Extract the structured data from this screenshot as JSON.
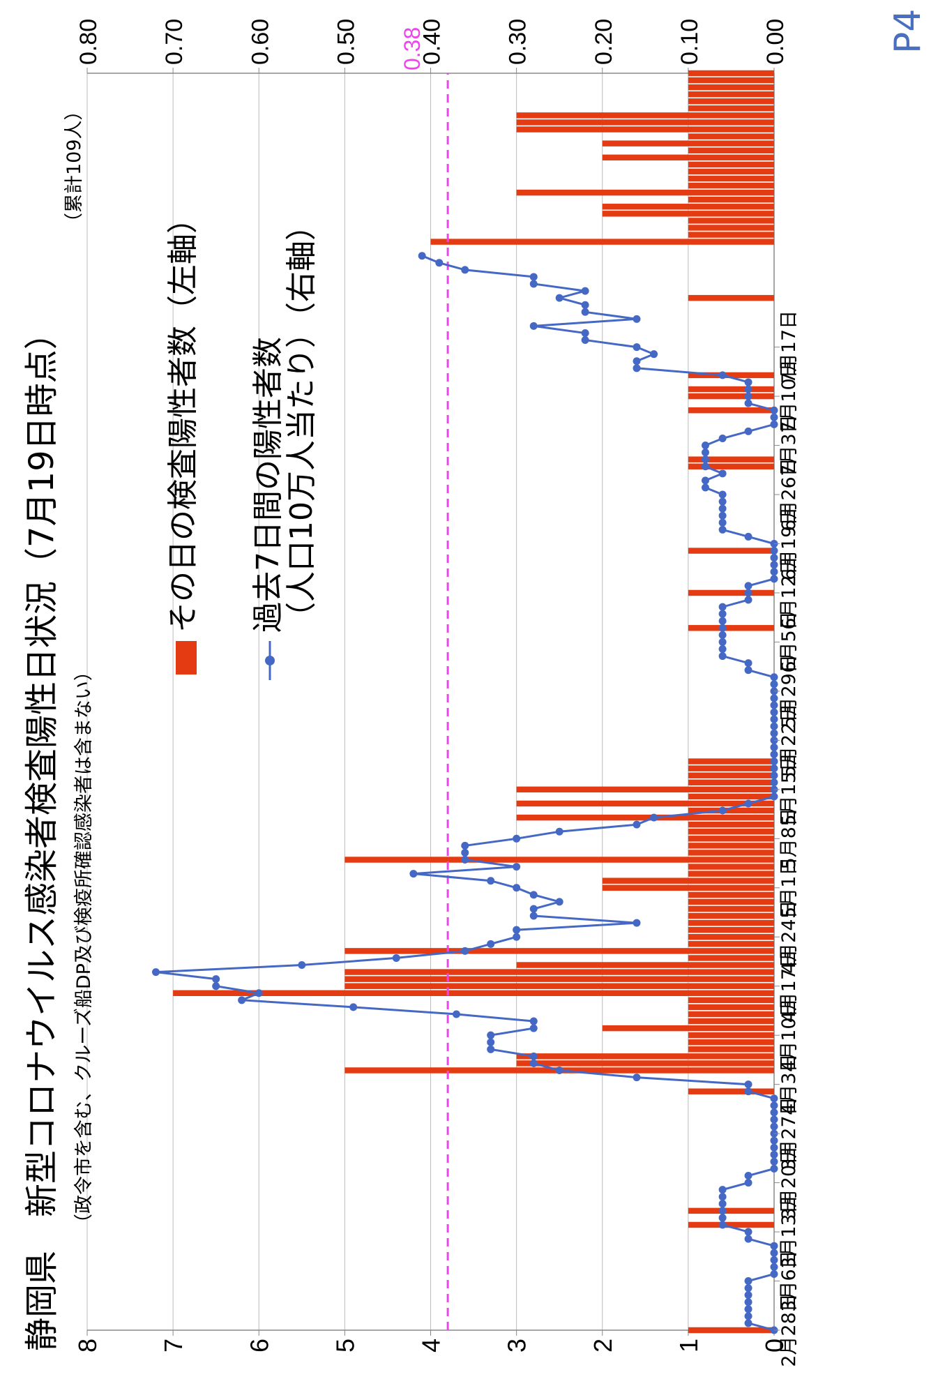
{
  "page_number": "P4",
  "title": "静岡県　新型コロナウイルス感染者検査陽性日状況（7月19日時点）",
  "subtitle": "（政令市を含む、クルーズ船DP及び検疫所確認感染者は含まない）",
  "cumulative_note": "（累計109人）",
  "legend": {
    "bar_label": "その日の検査陽性者数（左軸）",
    "line_label_1": "過去7日間の陽性者数",
    "line_label_2": "（人口10万人当たり）（右軸）"
  },
  "colors": {
    "bar": "#e53b12",
    "line": "#4468c4",
    "reference": "#ee44ee",
    "grid": "#bbbbbb"
  },
  "chart_data": {
    "type": "bar",
    "x_start": "2月28日",
    "x_end": "7月19日",
    "x_ticks": [
      "2月28日",
      "3月6日",
      "3月13日",
      "3月20日",
      "3月27日",
      "4月3日",
      "4月10日",
      "4月17日",
      "4月24日",
      "5月1日",
      "5月8日",
      "5月15日",
      "5月22日",
      "5月29日",
      "6月5日",
      "6月12日",
      "6月19日",
      "6月26日",
      "7月3日",
      "7月10日",
      "7月17日"
    ],
    "left_axis": {
      "ylim": [
        0,
        8
      ],
      "ticks": [
        "0",
        "1",
        "2",
        "3",
        "4",
        "5",
        "6",
        "7",
        "8"
      ]
    },
    "right_axis": {
      "ylim": [
        0,
        0.8
      ],
      "ticks": [
        "0.00",
        "0.10",
        "0.20",
        "0.30",
        "0.40",
        "0.50",
        "0.60",
        "0.70",
        "0.80"
      ]
    },
    "grid": true,
    "reference_line": {
      "value": 0.38,
      "label": "0.38"
    },
    "series": [
      {
        "kind": "bar",
        "axis": "left",
        "values": [
          1,
          0,
          0,
          0,
          0,
          0,
          0,
          0,
          0,
          0,
          0,
          0,
          0,
          0,
          0,
          1,
          0,
          1,
          0,
          0,
          0,
          0,
          0,
          0,
          0,
          0,
          0,
          0,
          0,
          0,
          0,
          0,
          0,
          0,
          1,
          0,
          0,
          5,
          3,
          3,
          1,
          1,
          1,
          2,
          1,
          1,
          1,
          1,
          7,
          5,
          5,
          5,
          3,
          1,
          5,
          1,
          1,
          1,
          1,
          1,
          1,
          1,
          1,
          2,
          2,
          1,
          1,
          5,
          1,
          1,
          1,
          1,
          1,
          3,
          1,
          3,
          1,
          3,
          1,
          1,
          1,
          1,
          0,
          0,
          0,
          0,
          0,
          0,
          0,
          0,
          0,
          0,
          0,
          0,
          0,
          0,
          0,
          0,
          0,
          0,
          1,
          0,
          0,
          0,
          0,
          1,
          0,
          0,
          0,
          0,
          0,
          1,
          0,
          0,
          0,
          0,
          0,
          0,
          0,
          0,
          0,
          0,
          0,
          1,
          1,
          0,
          0,
          0,
          0,
          0,
          0,
          1,
          0,
          1,
          1,
          0,
          1,
          0,
          0,
          0,
          0,
          0,
          0,
          0,
          0,
          0,
          0,
          1,
          0,
          0,
          0,
          0,
          0,
          0,
          0,
          4,
          1,
          1,
          1,
          2,
          2,
          1,
          3,
          1,
          1,
          1,
          1,
          2,
          1,
          2,
          1,
          3,
          3,
          3,
          1,
          1,
          1,
          1,
          1,
          1
        ]
      },
      {
        "kind": "line",
        "axis": "right",
        "values": [
          [
            0,
            0.0
          ],
          [
            1,
            0.03
          ],
          [
            2,
            0.03
          ],
          [
            3,
            0.03
          ],
          [
            4,
            0.03
          ],
          [
            5,
            0.03
          ],
          [
            6,
            0.03
          ],
          [
            7,
            0.03
          ],
          [
            8,
            0.0
          ],
          [
            9,
            0.0
          ],
          [
            10,
            0.0
          ],
          [
            11,
            0.0
          ],
          [
            12,
            0.0
          ],
          [
            13,
            0.03
          ],
          [
            14,
            0.03
          ],
          [
            15,
            0.06
          ],
          [
            16,
            0.06
          ],
          [
            17,
            0.06
          ],
          [
            18,
            0.06
          ],
          [
            19,
            0.06
          ],
          [
            20,
            0.06
          ],
          [
            21,
            0.03
          ],
          [
            22,
            0.03
          ],
          [
            23,
            0.0
          ],
          [
            24,
            0.0
          ],
          [
            25,
            0.0
          ],
          [
            26,
            0.0
          ],
          [
            27,
            0.0
          ],
          [
            28,
            0.0
          ],
          [
            29,
            0.0
          ],
          [
            30,
            0.0
          ],
          [
            31,
            0.0
          ],
          [
            32,
            0.0
          ],
          [
            33,
            0.0
          ],
          [
            34,
            0.03
          ],
          [
            35,
            0.03
          ],
          [
            36,
            0.16
          ],
          [
            37,
            0.25
          ],
          [
            38,
            0.28
          ],
          [
            39,
            0.28
          ],
          [
            40,
            0.33
          ],
          [
            41,
            0.33
          ],
          [
            42,
            0.33
          ],
          [
            43,
            0.28
          ],
          [
            44,
            0.28
          ],
          [
            45,
            0.37
          ],
          [
            46,
            0.49
          ],
          [
            47,
            0.62
          ],
          [
            48,
            0.6
          ],
          [
            49,
            0.65
          ],
          [
            50,
            0.65
          ],
          [
            51,
            0.72
          ],
          [
            52,
            0.55
          ],
          [
            53,
            0.44
          ],
          [
            54,
            0.36
          ],
          [
            55,
            0.33
          ],
          [
            56,
            0.3
          ],
          [
            57,
            0.3
          ],
          [
            58,
            0.16
          ],
          [
            59,
            0.28
          ],
          [
            60,
            0.28
          ],
          [
            61,
            0.25
          ],
          [
            62,
            0.28
          ],
          [
            63,
            0.3
          ],
          [
            64,
            0.33
          ],
          [
            65,
            0.42
          ],
          [
            66,
            0.3
          ],
          [
            67,
            0.36
          ],
          [
            68,
            0.36
          ],
          [
            69,
            0.36
          ],
          [
            70,
            0.3
          ],
          [
            71,
            0.25
          ],
          [
            72,
            0.16
          ],
          [
            73,
            0.14
          ],
          [
            74,
            0.06
          ],
          [
            75,
            0.03
          ],
          [
            76,
            0.0
          ],
          [
            77,
            0.0
          ],
          [
            78,
            0.0
          ],
          [
            79,
            0.0
          ],
          [
            80,
            0.0
          ],
          [
            81,
            0.0
          ],
          [
            82,
            0.0
          ],
          [
            83,
            0.0
          ],
          [
            84,
            0.0
          ],
          [
            85,
            0.0
          ],
          [
            86,
            0.0
          ],
          [
            87,
            0.0
          ],
          [
            88,
            0.0
          ],
          [
            89,
            0.0
          ],
          [
            90,
            0.0
          ],
          [
            91,
            0.0
          ],
          [
            92,
            0.0
          ],
          [
            93,
            0.0
          ],
          [
            94,
            0.03
          ],
          [
            95,
            0.03
          ],
          [
            96,
            0.06
          ],
          [
            97,
            0.06
          ],
          [
            98,
            0.06
          ],
          [
            99,
            0.06
          ],
          [
            100,
            0.06
          ],
          [
            101,
            0.06
          ],
          [
            102,
            0.06
          ],
          [
            103,
            0.06
          ],
          [
            104,
            0.03
          ],
          [
            105,
            0.03
          ],
          [
            106,
            0.03
          ],
          [
            107,
            0.0
          ],
          [
            108,
            0.0
          ],
          [
            109,
            0.0
          ],
          [
            110,
            0.0
          ],
          [
            111,
            0.0
          ],
          [
            112,
            0.0
          ],
          [
            113,
            0.03
          ],
          [
            114,
            0.06
          ],
          [
            115,
            0.06
          ],
          [
            116,
            0.06
          ],
          [
            117,
            0.06
          ],
          [
            118,
            0.06
          ],
          [
            119,
            0.06
          ],
          [
            120,
            0.08
          ],
          [
            121,
            0.08
          ],
          [
            122,
            0.06
          ],
          [
            123,
            0.08
          ],
          [
            124,
            0.08
          ],
          [
            125,
            0.08
          ],
          [
            126,
            0.08
          ],
          [
            127,
            0.06
          ],
          [
            128,
            0.03
          ],
          [
            129,
            0.0
          ],
          [
            130,
            0.0
          ],
          [
            131,
            0.0
          ],
          [
            132,
            0.03
          ],
          [
            133,
            0.03
          ],
          [
            134,
            0.03
          ],
          [
            135,
            0.03
          ],
          [
            136,
            0.06
          ],
          [
            137,
            0.16
          ],
          [
            138,
            0.16
          ],
          [
            139,
            0.14
          ],
          [
            140,
            0.16
          ],
          [
            141,
            0.22
          ],
          [
            142,
            0.22
          ],
          [
            143,
            0.28
          ],
          [
            144,
            0.16
          ],
          [
            145,
            0.22
          ],
          [
            146,
            0.22
          ],
          [
            147,
            0.25
          ],
          [
            148,
            0.22
          ],
          [
            149,
            0.28
          ],
          [
            150,
            0.28
          ],
          [
            151,
            0.36
          ],
          [
            152,
            0.39
          ],
          [
            153,
            0.41
          ]
        ]
      }
    ]
  }
}
